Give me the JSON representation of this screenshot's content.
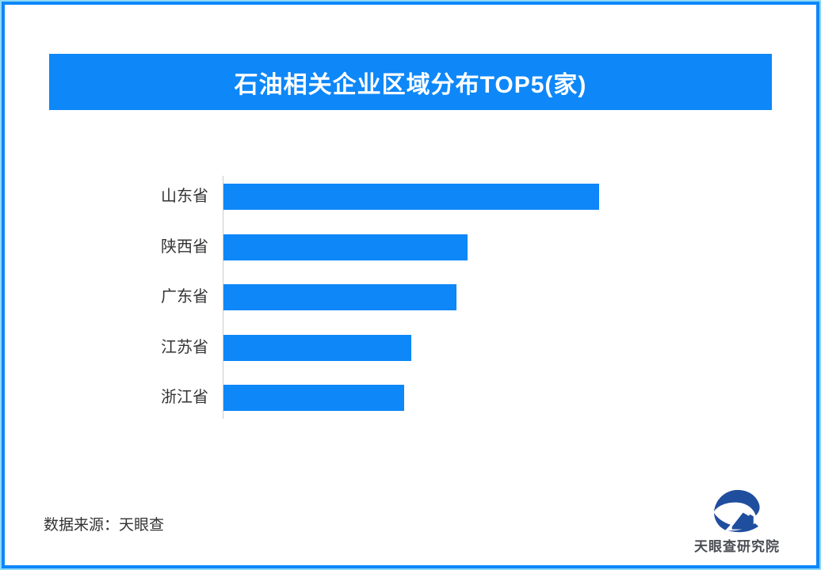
{
  "page": {
    "title_banner": {
      "text": "石油相关企业区域分布TOP5(家)"
    },
    "source_note": "数据来源：天眼查",
    "logo": {
      "text": "天眼查研究院"
    }
  },
  "colors": {
    "accent_blue": "#0E87F8",
    "frame_outer_cyan": "#8ED9F7",
    "logo_navy": "#1F4E9E",
    "label_text": "#333333",
    "axis_line": "#CCCCCC",
    "title_text": "#FFFFFF"
  },
  "chart_data": {
    "type": "bar",
    "orientation": "horizontal",
    "title": "石油相关企业区域分布TOP5(家)",
    "xlabel": "",
    "ylabel": "",
    "categories": [
      "山东省",
      "陕西省",
      "广东省",
      "江苏省",
      "浙江省"
    ],
    "values": [
      100,
      65,
      62,
      50,
      48
    ],
    "values_unit": "relative length, longest bar = 100 (no numeric labels or axis ticks shown in image)",
    "bar_color": "#0E87F8",
    "legend": "none",
    "grid": "off",
    "value_axis": "hidden"
  }
}
